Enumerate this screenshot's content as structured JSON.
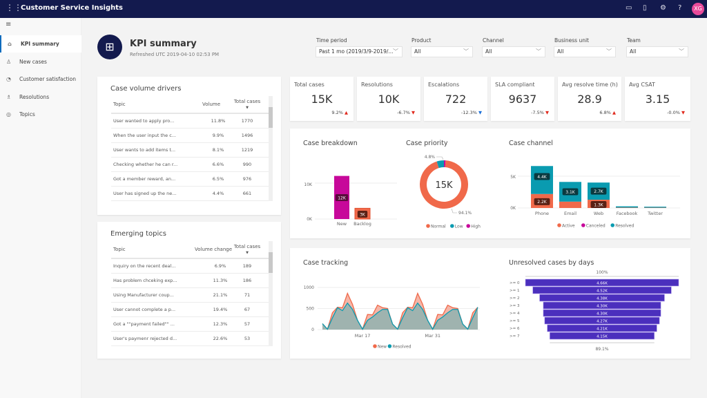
{
  "app": {
    "title": "Customer Service Insights",
    "user_initials": "XG",
    "icons": [
      "waffle-icon",
      "chat-icon",
      "bell-icon",
      "gear-icon",
      "help-icon"
    ]
  },
  "sidebar": {
    "items": [
      {
        "label": "KPI summary",
        "icon": "home-icon",
        "active": true
      },
      {
        "label": "New cases",
        "icon": "person-icon"
      },
      {
        "label": "Customer satisfaction",
        "icon": "gauge-icon"
      },
      {
        "label": "Resolutions",
        "icon": "person-check-icon"
      },
      {
        "label": "Topics",
        "icon": "topics-icon"
      }
    ]
  },
  "header": {
    "title": "KPI summary",
    "refreshed": "Refreshed UTC 2019-04-10 02:53 PM"
  },
  "filters": [
    {
      "label": "Time period",
      "value": "Past 1 mo (2019/3/9-2019/..."
    },
    {
      "label": "Product",
      "value": "All"
    },
    {
      "label": "Channel",
      "value": "All"
    },
    {
      "label": "Business unit",
      "value": "All"
    },
    {
      "label": "Team",
      "value": "All"
    }
  ],
  "kpis": [
    {
      "label": "Total cases",
      "value": "15K",
      "change": "9.2%",
      "trend": "up"
    },
    {
      "label": "Resolutions",
      "value": "10K",
      "change": "-6.7%",
      "trend": "down"
    },
    {
      "label": "Escalations",
      "value": "722",
      "change": "-12.3%",
      "trend": "down-good"
    },
    {
      "label": "SLA compliant",
      "value": "9637",
      "change": "-7.5%",
      "trend": "down"
    },
    {
      "label": "Avg resolve time (h)",
      "value": "28.9",
      "change": "6.8%",
      "trend": "up"
    },
    {
      "label": "Avg CSAT",
      "value": "3.15",
      "change": "-0.0%",
      "trend": "down"
    }
  ],
  "volume_drivers": {
    "title": "Case volume drivers",
    "columns": [
      "Topic",
      "Volume",
      "Total cases"
    ],
    "rows": [
      [
        "User wanted to apply pro...",
        "11.8%",
        "1770"
      ],
      [
        "When the user input the c...",
        "9.9%",
        "1496"
      ],
      [
        "User wants to add items t...",
        "8.1%",
        "1219"
      ],
      [
        "Checking whether he can r...",
        "6.6%",
        "990"
      ],
      [
        "Got a member reward, an...",
        "6.5%",
        "976"
      ],
      [
        "User has signed up the ne...",
        "4.4%",
        "661"
      ]
    ]
  },
  "emerging_topics": {
    "title": "Emerging topics",
    "columns": [
      "Topic",
      "Volume change",
      "Total cases"
    ],
    "rows": [
      [
        "Inquiry on the recent deal...",
        "6.9%",
        "189"
      ],
      [
        "Has problem chceking exp...",
        "11.3%",
        "186"
      ],
      [
        "Using Manufacturer coup...",
        "21.1%",
        "71"
      ],
      [
        "User cannot complete a p...",
        "19.4%",
        "67"
      ],
      [
        "Got a \"\"payment failed\"\" ...",
        "12.3%",
        "57"
      ],
      [
        "User's paymenr rejected d...",
        "22.6%",
        "53"
      ]
    ]
  },
  "colors": {
    "orange": "#f0694a",
    "teal": "#0a9bb0",
    "magenta": "#c7089a",
    "purple": "#4b2fbd",
    "navy": "#131a4e"
  },
  "chart_data": [
    {
      "id": "case-breakdown",
      "type": "bar",
      "title": "Case breakdown",
      "categories": [
        "New",
        "Backlog"
      ],
      "values": [
        12000,
        3000
      ],
      "data_labels": [
        "12K",
        "3K"
      ],
      "yticks": [
        "0K",
        "10K"
      ],
      "ylim": [
        0,
        15000
      ]
    },
    {
      "id": "case-priority",
      "type": "pie",
      "title": "Case priority",
      "center_label": "15K",
      "slices": [
        {
          "name": "Normal",
          "value": 94.1
        },
        {
          "name": "Low",
          "value": 4.8
        },
        {
          "name": "High",
          "value": 1.1
        }
      ],
      "data_labels": [
        "4.8%",
        "94.1%"
      ],
      "legend": "bottom"
    },
    {
      "id": "case-channel",
      "type": "bar",
      "stacked": true,
      "title": "Case channel",
      "categories": [
        "Phone",
        "Email",
        "Web",
        "Facebook",
        "Twitter"
      ],
      "series": [
        {
          "name": "Active",
          "values": [
            2200,
            1000,
            1300,
            60,
            50
          ]
        },
        {
          "name": "Canceled",
          "values": [
            0,
            0,
            0,
            0,
            0
          ]
        },
        {
          "name": "Resolved",
          "values": [
            4400,
            3100,
            2700,
            200,
            150
          ]
        }
      ],
      "data_labels": {
        "Phone": [
          "2.2K",
          "4.4K"
        ],
        "Email": [
          "",
          "3.1K"
        ],
        "Web": [
          "1.3K",
          "2.7K"
        ]
      },
      "yticks": [
        "0K",
        "5K"
      ],
      "ylim": [
        0,
        7000
      ],
      "legend": "bottom"
    },
    {
      "id": "case-tracking",
      "type": "area",
      "title": "Case tracking",
      "x": [
        "Mar 9",
        "Mar 10",
        "Mar 11",
        "Mar 12",
        "Mar 13",
        "Mar 14",
        "Mar 15",
        "Mar 16",
        "Mar 17",
        "Mar 18",
        "Mar 19",
        "Mar 20",
        "Mar 21",
        "Mar 22",
        "Mar 23",
        "Mar 24",
        "Mar 25",
        "Mar 26",
        "Mar 27",
        "Mar 28",
        "Mar 29",
        "Mar 30",
        "Mar 31",
        "Apr 1",
        "Apr 2",
        "Apr 3",
        "Apr 4",
        "Apr 5",
        "Apr 6",
        "Apr 7",
        "Apr 8",
        "Apr 9"
      ],
      "xticks": [
        "Mar 17",
        "Mar 31"
      ],
      "yticks": [
        0,
        500,
        1000
      ],
      "ylim": [
        0,
        1000
      ],
      "series": [
        {
          "name": "New",
          "values": [
            140,
            10,
            400,
            530,
            520,
            860,
            600,
            220,
            10,
            360,
            350,
            580,
            520,
            500,
            130,
            10,
            400,
            530,
            520,
            860,
            600,
            220,
            10,
            360,
            350,
            580,
            520,
            500,
            130,
            10,
            400,
            530
          ]
        },
        {
          "name": "Resolved",
          "values": [
            140,
            10,
            280,
            520,
            450,
            630,
            480,
            220,
            10,
            220,
            300,
            400,
            480,
            480,
            130,
            10,
            280,
            520,
            450,
            630,
            480,
            220,
            10,
            220,
            300,
            400,
            480,
            480,
            130,
            10,
            280,
            530
          ]
        }
      ],
      "legend": "bottom"
    },
    {
      "id": "unresolved-by-days",
      "type": "bar",
      "orientation": "funnel",
      "title": "Unresolved cases by days",
      "categories": [
        ">= 0",
        ">= 1",
        ">= 2",
        ">= 3",
        ">= 4",
        ">= 5",
        ">= 6",
        ">= 7"
      ],
      "values": [
        4660,
        4520,
        4380,
        4300,
        4300,
        4270,
        4210,
        4150
      ],
      "data_labels": [
        "4.66K",
        "4.52K",
        "4.38K",
        "4.30K",
        "4.30K",
        "4.27K",
        "4.21K",
        "4.15K"
      ],
      "top_label": "100%",
      "bottom_label": "89.1%"
    }
  ]
}
